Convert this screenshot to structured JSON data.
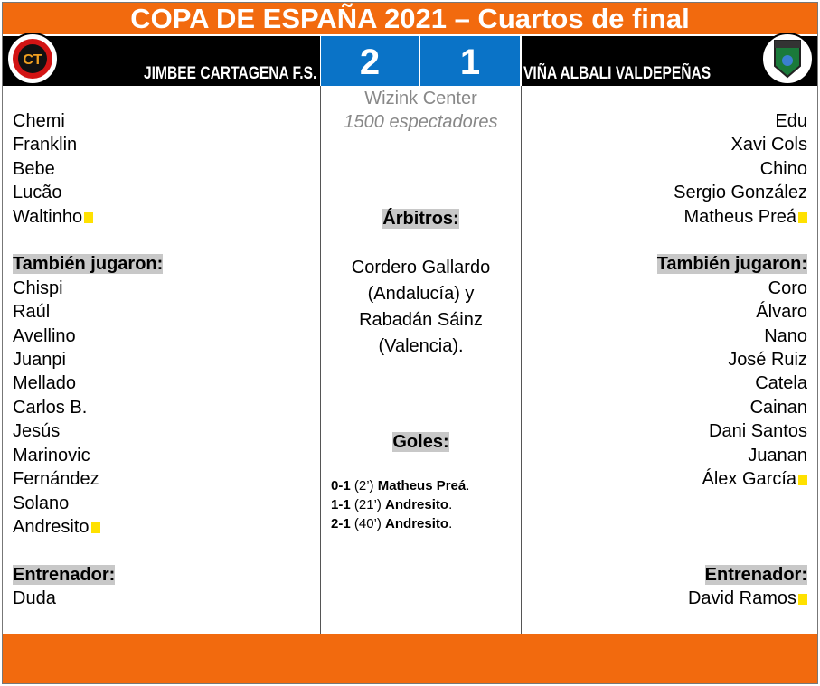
{
  "title": "COPA DE ESPAÑA 2021 – Cuartos de final",
  "home": {
    "name": "JIMBEE CARTAGENA F.S.",
    "score": "2",
    "logo": "CT",
    "starters": [
      {
        "n": "Chemi"
      },
      {
        "n": "Franklin"
      },
      {
        "n": "Bebe"
      },
      {
        "n": "Lucão"
      },
      {
        "n": "Waltinho",
        "card": "yellow"
      }
    ],
    "subs_label": "También jugaron:",
    "subs": [
      {
        "n": "Chispi"
      },
      {
        "n": "Raúl"
      },
      {
        "n": "Avellino"
      },
      {
        "n": "Juanpi"
      },
      {
        "n": "Mellado"
      },
      {
        "n": "Carlos B."
      },
      {
        "n": "Jesús"
      },
      {
        "n": "Marinovic"
      },
      {
        "n": "Fernández"
      },
      {
        "n": "Solano"
      },
      {
        "n": "Andresito",
        "card": "yellow"
      }
    ],
    "coach_label": "Entrenador:",
    "coach": {
      "n": "Duda"
    }
  },
  "away": {
    "name": "VIÑA ALBALI VALDEPEÑAS",
    "score": "1",
    "starters": [
      {
        "n": "Edu"
      },
      {
        "n": "Xavi Cols"
      },
      {
        "n": "Chino"
      },
      {
        "n": "Sergio González"
      },
      {
        "n": "Matheus Preá",
        "card": "yellow"
      }
    ],
    "subs_label": "También jugaron:",
    "subs": [
      {
        "n": "Coro"
      },
      {
        "n": "Álvaro"
      },
      {
        "n": "Nano"
      },
      {
        "n": "José Ruiz"
      },
      {
        "n": "Catela"
      },
      {
        "n": "Cainan"
      },
      {
        "n": "Dani Santos"
      },
      {
        "n": "Juanan"
      },
      {
        "n": "Álex García",
        "card": "yellow"
      }
    ],
    "coach_label": "Entrenador:",
    "coach": {
      "n": "David Ramos",
      "card": "yellow"
    }
  },
  "venue": "Wizink Center",
  "attendance": "1500 espectadores",
  "referees_label": "Árbitros:",
  "referees": "Cordero Gallardo (Andalucía) y Rabadán Sáinz (Valencia).",
  "goals_label": "Goles:",
  "goals": [
    {
      "score": "0-1",
      "min": "(2’)",
      "player": "Matheus Preá"
    },
    {
      "score": "1-1",
      "min": "(21’)",
      "player": "Andresito"
    },
    {
      "score": "2-1",
      "min": "(40’)",
      "player": "Andresito"
    }
  ],
  "colors": {
    "orange": "#f26a0e",
    "blue": "#0a73c7",
    "card": "#ffe100"
  }
}
